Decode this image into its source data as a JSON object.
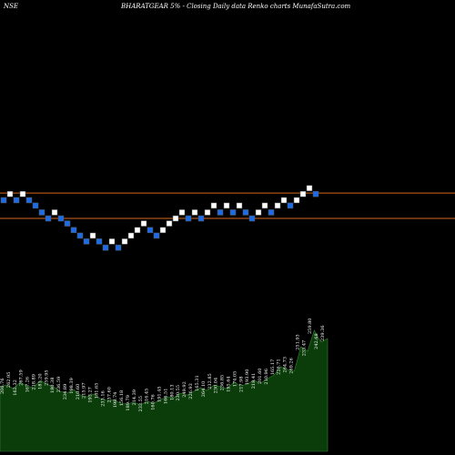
{
  "header": {
    "exchange": "NSE",
    "title": "BHARATGEAR 5% - Closing Daily data Renko charts MunafaSutra.com"
  },
  "colors": {
    "background": "#000000",
    "up_brick": "#ffffff",
    "down_brick": "#1e6be6",
    "brick_outline": "#555555",
    "horizontal_line": "#d2691e",
    "volume_fill": "#0b3d0b",
    "volume_stroke": "#2f7d2f"
  },
  "chart_data": [
    {
      "type": "renko",
      "brick_size_pct": 5,
      "y_scale": "log",
      "axis_values_shown": false,
      "horizontal_lines": [
        119,
        96
      ],
      "bricks": [
        {
          "dir": "down",
          "close": 112
        },
        {
          "dir": "up",
          "close": 118
        },
        {
          "dir": "down",
          "close": 112
        },
        {
          "dir": "up",
          "close": 118
        },
        {
          "dir": "down",
          "close": 112
        },
        {
          "dir": "down",
          "close": 107
        },
        {
          "dir": "down",
          "close": 101
        },
        {
          "dir": "down",
          "close": 96
        },
        {
          "dir": "up",
          "close": 101
        },
        {
          "dir": "down",
          "close": 96
        },
        {
          "dir": "down",
          "close": 92
        },
        {
          "dir": "down",
          "close": 87
        },
        {
          "dir": "down",
          "close": 83
        },
        {
          "dir": "down",
          "close": 79
        },
        {
          "dir": "up",
          "close": 83
        },
        {
          "dir": "down",
          "close": 79
        },
        {
          "dir": "down",
          "close": 75
        },
        {
          "dir": "up",
          "close": 79
        },
        {
          "dir": "down",
          "close": 75
        },
        {
          "dir": "up",
          "close": 79
        },
        {
          "dir": "up",
          "close": 83
        },
        {
          "dir": "up",
          "close": 87
        },
        {
          "dir": "up",
          "close": 92
        },
        {
          "dir": "down",
          "close": 87
        },
        {
          "dir": "down",
          "close": 83
        },
        {
          "dir": "up",
          "close": 87
        },
        {
          "dir": "up",
          "close": 92
        },
        {
          "dir": "up",
          "close": 96
        },
        {
          "dir": "up",
          "close": 101
        },
        {
          "dir": "down",
          "close": 96
        },
        {
          "dir": "up",
          "close": 101
        },
        {
          "dir": "down",
          "close": 96
        },
        {
          "dir": "up",
          "close": 101
        },
        {
          "dir": "up",
          "close": 107
        },
        {
          "dir": "down",
          "close": 101
        },
        {
          "dir": "up",
          "close": 107
        },
        {
          "dir": "down",
          "close": 101
        },
        {
          "dir": "up",
          "close": 107
        },
        {
          "dir": "down",
          "close": 101
        },
        {
          "dir": "down",
          "close": 96
        },
        {
          "dir": "up",
          "close": 101
        },
        {
          "dir": "up",
          "close": 107
        },
        {
          "dir": "down",
          "close": 101
        },
        {
          "dir": "up",
          "close": 107
        },
        {
          "dir": "up",
          "close": 112
        },
        {
          "dir": "down",
          "close": 107
        },
        {
          "dir": "up",
          "close": 112
        },
        {
          "dir": "up",
          "close": 118
        },
        {
          "dir": "up",
          "close": 124
        },
        {
          "dir": "down",
          "close": 118
        }
      ],
      "volume_series": [
        71,
        73,
        69,
        76,
        72,
        70,
        78,
        74,
        71,
        66,
        64,
        68,
        62,
        60,
        63,
        58,
        56,
        57,
        53,
        52,
        54,
        51,
        55,
        53,
        57,
        60,
        59,
        64,
        62,
        66,
        70,
        67,
        73,
        71,
        69,
        76,
        72,
        74,
        78,
        75,
        80,
        84,
        93,
        90,
        88,
        115,
        110,
        133,
        120,
        124
      ],
      "volume_labels": [
        "206.76",
        "262.95",
        "162.32",
        "267.59",
        "167.26",
        "218.89",
        "181.20",
        "259.95",
        "180.38",
        "236.59",
        "234.89",
        "198.39",
        "210.60",
        "215.97",
        "193.27",
        "181.65",
        "233.16",
        "237.60",
        "198.74",
        "156.18",
        "189.79",
        "214.39",
        "233.55",
        "216.45",
        "160.76",
        "191.45",
        "166.51",
        "180.13",
        "230.55",
        "249.92",
        "226.93",
        "165.31",
        "264.10",
        "232.85",
        "230.04",
        "236.85",
        "195.64",
        "174.05",
        "217.98",
        "193.90",
        "218.41",
        "201.60",
        "210.96",
        "165.17",
        "226.71",
        "264.73",
        "269.26",
        "251.93",
        "233.47",
        "259.80",
        "242.68",
        "239.36"
      ]
    }
  ]
}
